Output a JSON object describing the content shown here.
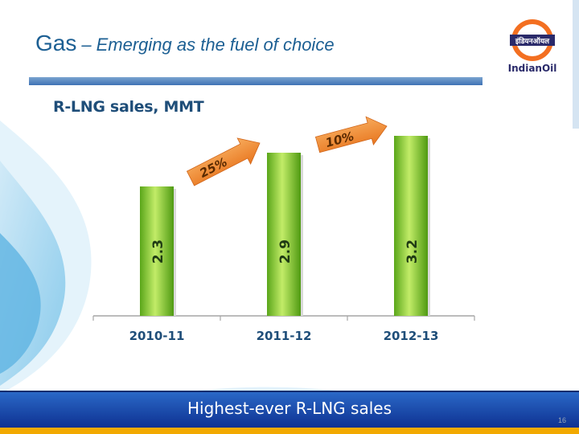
{
  "slide": {
    "title_main": "Gas",
    "title_separator": "–",
    "title_sub": "Emerging as the fuel of choice",
    "logo_text": "IndianOil",
    "logo_band_text": "इंडियनऑयल",
    "footer": "Highest-ever R-LNG sales",
    "page_number": "16"
  },
  "colors": {
    "title": "#1c5f93",
    "bar_light": "#b6e35a",
    "bar_dark": "#4f9a12",
    "arrow": "#f0892f",
    "footer_bar": "#1a4aab",
    "logo_orange": "#f36f21"
  },
  "chart_data": {
    "type": "bar",
    "title": "R-LNG sales, MMT",
    "categories": [
      "2010-11",
      "2011-12",
      "2012-13"
    ],
    "values": [
      2.3,
      2.9,
      3.2
    ],
    "data_labels": [
      "2.3",
      "2.9",
      "3.2"
    ],
    "data_label_orientation": "rotated-vertical",
    "ylim": [
      0,
      3.5
    ],
    "grid": false,
    "legend": "none",
    "annotations": [
      {
        "text": "25%",
        "from_category": "2010-11",
        "to_category": "2011-12"
      },
      {
        "text": "10%",
        "from_category": "2011-12",
        "to_category": "2012-13"
      }
    ]
  }
}
